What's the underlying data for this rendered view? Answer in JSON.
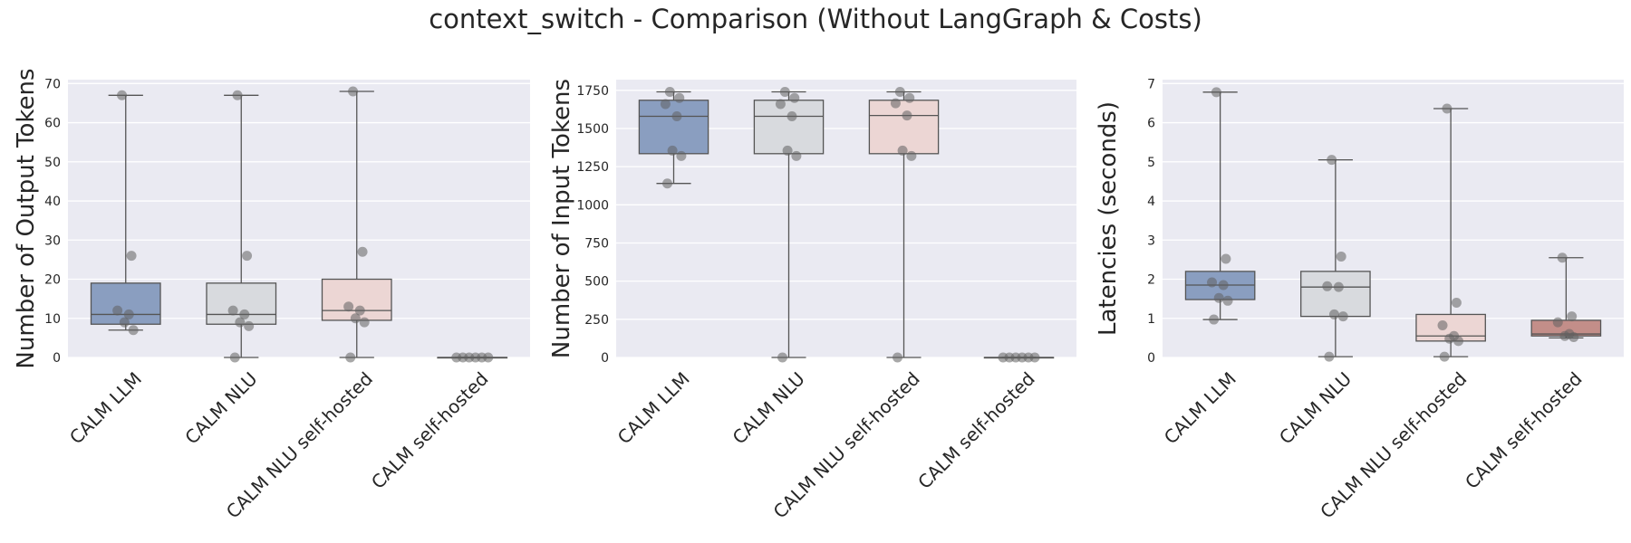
{
  "figure": {
    "title": "context_switch - Comparison (Without LangGraph & Costs)"
  },
  "style": {
    "panel_background": "#eaeaf2",
    "grid_color": "#ffffff",
    "line_color": "#555555",
    "point_color": "#606060",
    "box_colors": [
      "#8a9ec0",
      "#d8dade",
      "#ecd6d4",
      "#c38e89"
    ]
  },
  "chart_data": [
    {
      "type": "box",
      "ylabel": "Number of Output Tokens",
      "categories": [
        "CALM LLM",
        "CALM NLU",
        "CALM NLU self-hosted",
        "CALM self-hosted"
      ],
      "yticks": [
        0,
        10,
        20,
        30,
        40,
        50,
        60,
        70
      ],
      "ylim": [
        0,
        71
      ],
      "grid": true,
      "boxes": [
        {
          "min": 7,
          "q1": 8.5,
          "median": 11,
          "q3": 19,
          "max": 67,
          "points": [
            67,
            26,
            12,
            11,
            9,
            7
          ]
        },
        {
          "min": 0,
          "q1": 8.5,
          "median": 11,
          "q3": 19,
          "max": 67,
          "points": [
            67,
            26,
            12,
            11,
            9,
            8,
            0
          ]
        },
        {
          "min": 0,
          "q1": 9.5,
          "median": 12,
          "q3": 20,
          "max": 68,
          "points": [
            68,
            27,
            13,
            12,
            10,
            9,
            0
          ]
        },
        {
          "min": 0,
          "q1": 0,
          "median": 0,
          "q3": 0,
          "max": 0,
          "points": [
            0,
            0,
            0,
            0,
            0,
            0
          ]
        }
      ]
    },
    {
      "type": "box",
      "ylabel": "Number of Input Tokens",
      "categories": [
        "CALM LLM",
        "CALM NLU",
        "CALM NLU self-hosted",
        "CALM self-hosted"
      ],
      "yticks": [
        0,
        250,
        500,
        750,
        1000,
        1250,
        1500,
        1750
      ],
      "ylim": [
        0,
        1820
      ],
      "grid": true,
      "boxes": [
        {
          "min": 1140,
          "q1": 1335,
          "median": 1580,
          "q3": 1685,
          "max": 1740,
          "points": [
            1740,
            1700,
            1660,
            1580,
            1355,
            1320,
            1140
          ]
        },
        {
          "min": 0,
          "q1": 1335,
          "median": 1580,
          "q3": 1685,
          "max": 1740,
          "points": [
            1740,
            1700,
            1660,
            1580,
            1355,
            1320,
            0
          ]
        },
        {
          "min": 0,
          "q1": 1335,
          "median": 1585,
          "q3": 1685,
          "max": 1740,
          "points": [
            1740,
            1700,
            1665,
            1585,
            1355,
            1320,
            0
          ]
        },
        {
          "min": 0,
          "q1": 0,
          "median": 0,
          "q3": 0,
          "max": 0,
          "points": [
            0,
            0,
            0,
            0,
            0,
            0
          ]
        }
      ]
    },
    {
      "type": "box",
      "ylabel": "Latencies (seconds)",
      "categories": [
        "CALM LLM",
        "CALM NLU",
        "CALM NLU self-hosted",
        "CALM self-hosted"
      ],
      "yticks": [
        0,
        1,
        2,
        3,
        4,
        5,
        6,
        7
      ],
      "ylim": [
        0,
        7.1
      ],
      "grid": true,
      "boxes": [
        {
          "min": 0.97,
          "q1": 1.48,
          "median": 1.85,
          "q3": 2.2,
          "max": 6.78,
          "points": [
            6.78,
            2.52,
            1.92,
            1.85,
            1.52,
            1.45,
            0.97
          ]
        },
        {
          "min": 0.02,
          "q1": 1.05,
          "median": 1.8,
          "q3": 2.2,
          "max": 5.05,
          "points": [
            5.05,
            2.58,
            1.82,
            1.8,
            1.1,
            1.05,
            0.02
          ]
        },
        {
          "min": 0.02,
          "q1": 0.42,
          "median": 0.55,
          "q3": 1.1,
          "max": 6.36,
          "points": [
            6.36,
            1.4,
            0.82,
            0.55,
            0.48,
            0.42,
            0.02
          ]
        },
        {
          "min": 0.5,
          "q1": 0.55,
          "median": 0.6,
          "q3": 0.95,
          "max": 2.55,
          "points": [
            2.55,
            1.05,
            0.9,
            0.6,
            0.55,
            0.52
          ]
        }
      ]
    }
  ]
}
